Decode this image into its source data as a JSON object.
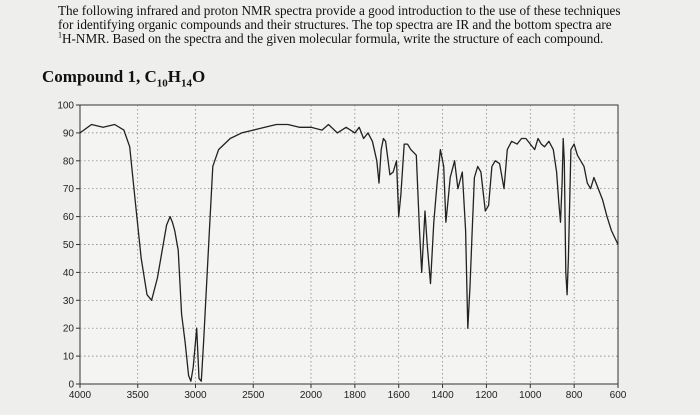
{
  "intro": {
    "line1": "The following infrared and proton NMR spectra provide a good introduction to the use of these techniques",
    "line2": "for identifying organic compounds and their structures.  The top spectra are IR and the bottom spectra are",
    "line3_sup": "1",
    "line3": "H-NMR.  Based on the spectra and the given molecular formula, write the structure of each compound."
  },
  "heading": {
    "label": "Compound 1,",
    "formula_c": "C",
    "formula_c_n": "10",
    "formula_h": "H",
    "formula_h_n": "14",
    "formula_o": "O"
  },
  "chart_data": {
    "type": "line",
    "title": "",
    "xlabel": "",
    "ylabel": "",
    "x_direction": "descending",
    "ylim": [
      0,
      100
    ],
    "grid": true,
    "grid_style": "dotted",
    "line_color": "#222222",
    "x_ticks": [
      4000,
      3500,
      3000,
      2500,
      2000,
      1800,
      1600,
      1400,
      1200,
      1000,
      800,
      600
    ],
    "y_ticks": [
      0,
      10,
      20,
      30,
      40,
      50,
      60,
      70,
      80,
      90,
      100
    ],
    "series": [
      {
        "name": "",
        "points": [
          [
            4000,
            90
          ],
          [
            3900,
            93
          ],
          [
            3800,
            92
          ],
          [
            3700,
            93
          ],
          [
            3620,
            91
          ],
          [
            3570,
            85
          ],
          [
            3520,
            65
          ],
          [
            3470,
            45
          ],
          [
            3420,
            32
          ],
          [
            3380,
            30
          ],
          [
            3330,
            38
          ],
          [
            3280,
            50
          ],
          [
            3250,
            57
          ],
          [
            3220,
            60
          ],
          [
            3200,
            58
          ],
          [
            3180,
            55
          ],
          [
            3150,
            48
          ],
          [
            3120,
            25
          ],
          [
            3090,
            15
          ],
          [
            3060,
            3
          ],
          [
            3040,
            1
          ],
          [
            3020,
            6
          ],
          [
            2990,
            20
          ],
          [
            2970,
            2
          ],
          [
            2950,
            1
          ],
          [
            2930,
            15
          ],
          [
            2880,
            55
          ],
          [
            2850,
            78
          ],
          [
            2800,
            84
          ],
          [
            2700,
            88
          ],
          [
            2600,
            90
          ],
          [
            2500,
            91
          ],
          [
            2400,
            92
          ],
          [
            2300,
            93
          ],
          [
            2200,
            93
          ],
          [
            2100,
            92
          ],
          [
            2000,
            92
          ],
          [
            1950,
            91
          ],
          [
            1920,
            93
          ],
          [
            1880,
            90
          ],
          [
            1840,
            92
          ],
          [
            1800,
            90
          ],
          [
            1780,
            92
          ],
          [
            1760,
            88
          ],
          [
            1740,
            90
          ],
          [
            1720,
            87
          ],
          [
            1700,
            80
          ],
          [
            1690,
            72
          ],
          [
            1680,
            84
          ],
          [
            1670,
            88
          ],
          [
            1660,
            87
          ],
          [
            1640,
            75
          ],
          [
            1625,
            76
          ],
          [
            1610,
            80
          ],
          [
            1600,
            60
          ],
          [
            1590,
            68
          ],
          [
            1575,
            86
          ],
          [
            1560,
            86
          ],
          [
            1545,
            84
          ],
          [
            1520,
            82
          ],
          [
            1505,
            55
          ],
          [
            1495,
            40
          ],
          [
            1480,
            62
          ],
          [
            1470,
            50
          ],
          [
            1455,
            36
          ],
          [
            1440,
            58
          ],
          [
            1425,
            72
          ],
          [
            1410,
            84
          ],
          [
            1395,
            78
          ],
          [
            1385,
            58
          ],
          [
            1375,
            66
          ],
          [
            1365,
            74
          ],
          [
            1345,
            80
          ],
          [
            1330,
            70
          ],
          [
            1310,
            76
          ],
          [
            1295,
            55
          ],
          [
            1285,
            20
          ],
          [
            1275,
            35
          ],
          [
            1265,
            55
          ],
          [
            1255,
            74
          ],
          [
            1240,
            78
          ],
          [
            1225,
            76
          ],
          [
            1205,
            62
          ],
          [
            1190,
            64
          ],
          [
            1175,
            78
          ],
          [
            1160,
            80
          ],
          [
            1140,
            79
          ],
          [
            1120,
            70
          ],
          [
            1105,
            84
          ],
          [
            1085,
            87
          ],
          [
            1060,
            86
          ],
          [
            1040,
            88
          ],
          [
            1020,
            88
          ],
          [
            1000,
            86
          ],
          [
            980,
            84
          ],
          [
            965,
            88
          ],
          [
            950,
            86
          ],
          [
            935,
            85
          ],
          [
            915,
            87
          ],
          [
            895,
            84
          ],
          [
            880,
            76
          ],
          [
            870,
            65
          ],
          [
            862,
            58
          ],
          [
            855,
            72
          ],
          [
            850,
            88
          ],
          [
            845,
            80
          ],
          [
            838,
            40
          ],
          [
            832,
            32
          ],
          [
            826,
            45
          ],
          [
            815,
            84
          ],
          [
            800,
            86
          ],
          [
            785,
            82
          ],
          [
            770,
            80
          ],
          [
            755,
            78
          ],
          [
            740,
            72
          ],
          [
            725,
            70
          ],
          [
            710,
            74
          ],
          [
            690,
            70
          ],
          [
            670,
            66
          ],
          [
            650,
            60
          ],
          [
            630,
            55
          ],
          [
            600,
            50
          ]
        ]
      }
    ]
  }
}
